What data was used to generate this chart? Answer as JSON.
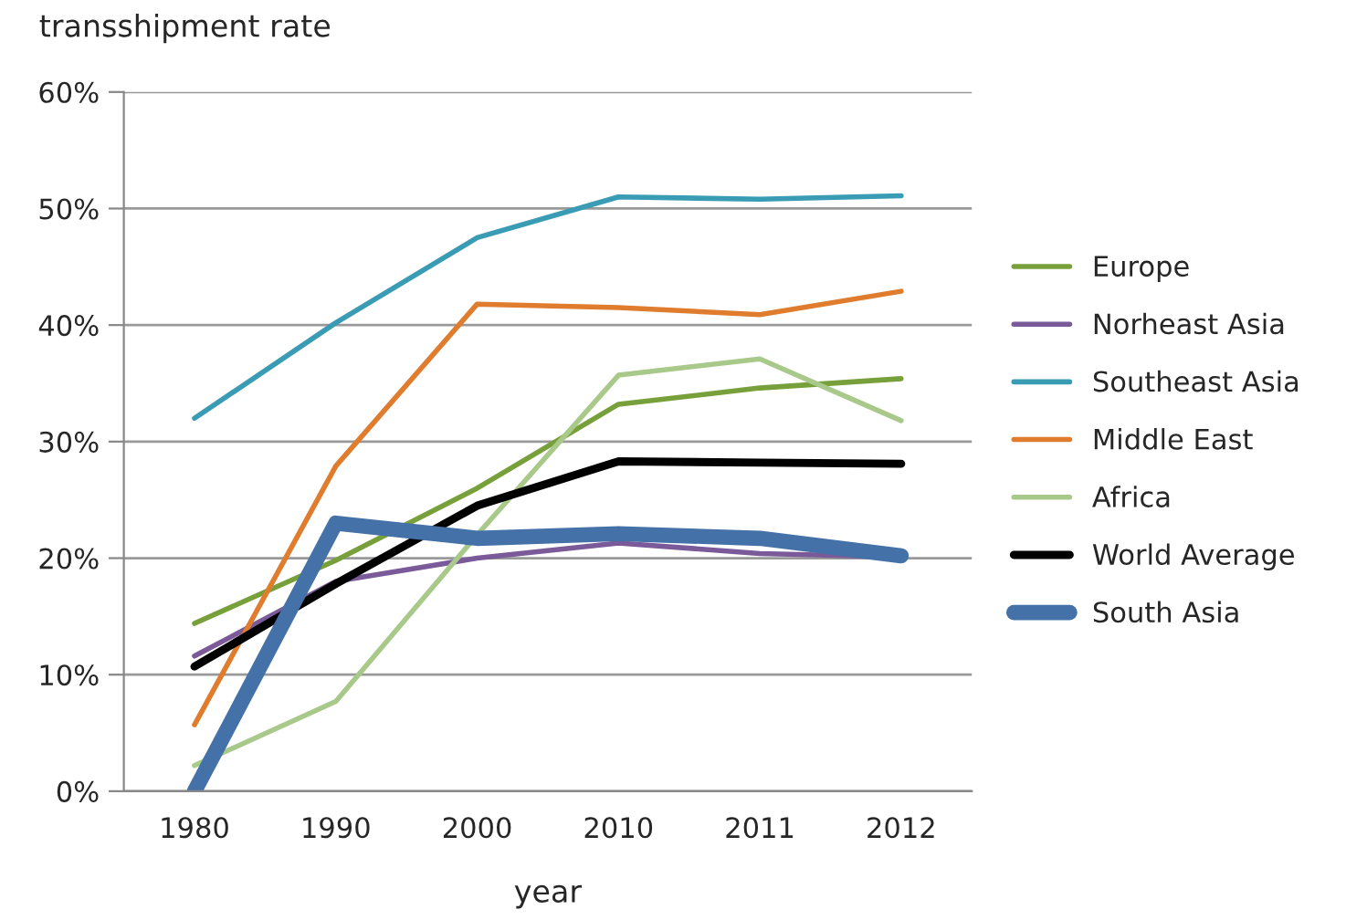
{
  "chart_data": {
    "type": "line",
    "xlabel": "year",
    "ylabel": "transshipment rate",
    "categories": [
      "1980",
      "1990",
      "2000",
      "2010",
      "2011",
      "2012"
    ],
    "series": [
      {
        "name": "Europe",
        "color": "#77a03a",
        "values": [
          14.4,
          19.8,
          26.0,
          33.2,
          34.6,
          35.4
        ]
      },
      {
        "name": "Norheast Asia",
        "color": "#7a5a99",
        "values": [
          11.6,
          18.0,
          20.0,
          21.3,
          20.4,
          20.1
        ]
      },
      {
        "name": "Southeast Asia",
        "color": "#3a9bb5",
        "values": [
          32.0,
          40.2,
          47.5,
          51.0,
          50.8,
          51.1
        ]
      },
      {
        "name": "Middle East",
        "color": "#e07c2e",
        "values": [
          5.7,
          27.9,
          41.8,
          41.5,
          40.9,
          42.9
        ]
      },
      {
        "name": "Africa",
        "color": "#a9c98a",
        "values": [
          2.2,
          7.7,
          22.0,
          35.7,
          37.1,
          31.8
        ]
      },
      {
        "name": "World Average",
        "color": "#000000",
        "values": [
          10.7,
          17.8,
          24.5,
          28.3,
          28.2,
          28.1
        ]
      },
      {
        "name": "South Asia",
        "color": "#4472a8",
        "values": [
          0,
          23.0,
          21.7,
          22.1,
          21.7,
          20.2
        ]
      }
    ],
    "ylim": [
      0,
      60
    ],
    "yticks": [
      {
        "value": 0,
        "label": "0%"
      },
      {
        "value": 10,
        "label": "10%"
      },
      {
        "value": 20,
        "label": "20%"
      },
      {
        "value": 30,
        "label": "30%"
      },
      {
        "value": 40,
        "label": "40%"
      },
      {
        "value": 50,
        "label": "50%"
      },
      {
        "value": 60,
        "label": "60%"
      }
    ],
    "grid": "y",
    "legend": "right",
    "marker": "none",
    "line_style": "solid"
  }
}
